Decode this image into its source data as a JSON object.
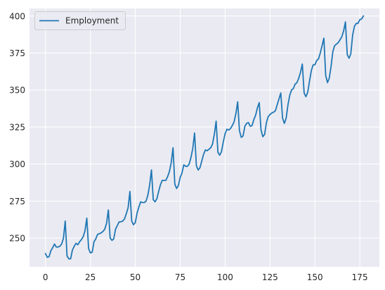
{
  "chart_data": {
    "type": "line",
    "title": "",
    "xlabel": "",
    "ylabel": "",
    "xlim": [
      -8.9,
      185.9
    ],
    "ylim": [
      230.6,
      405.1
    ],
    "xticks": [
      0,
      25,
      50,
      75,
      100,
      125,
      150,
      175
    ],
    "yticks": [
      250,
      275,
      300,
      325,
      350,
      375,
      400
    ],
    "grid": true,
    "legend_position": "top-left",
    "series": [
      {
        "name": "Employment",
        "color": "#1f77b4",
        "x": [
          0,
          1,
          2,
          3,
          4,
          5,
          6,
          7,
          8,
          9,
          10,
          11,
          12,
          13,
          14,
          15,
          16,
          17,
          18,
          19,
          20,
          21,
          22,
          23,
          24,
          25,
          26,
          27,
          28,
          29,
          30,
          31,
          32,
          33,
          34,
          35,
          36,
          37,
          38,
          39,
          40,
          41,
          42,
          43,
          44,
          45,
          46,
          47,
          48,
          49,
          50,
          51,
          52,
          53,
          54,
          55,
          56,
          57,
          58,
          59,
          60,
          61,
          62,
          63,
          64,
          65,
          66,
          67,
          68,
          69,
          70,
          71,
          72,
          73,
          74,
          75,
          76,
          77,
          78,
          79,
          80,
          81,
          82,
          83,
          84,
          85,
          86,
          87,
          88,
          89,
          90,
          91,
          92,
          93,
          94,
          95,
          96,
          97,
          98,
          99,
          100,
          101,
          102,
          103,
          104,
          105,
          106,
          107,
          108,
          109,
          110,
          111,
          112,
          113,
          114,
          115,
          116,
          117,
          118,
          119,
          120,
          121,
          122,
          123,
          124,
          125,
          126,
          127,
          128,
          129,
          130,
          131,
          132,
          133,
          134,
          135,
          136,
          137,
          138,
          139,
          140,
          141,
          142,
          143,
          144,
          145,
          146,
          147,
          148,
          149,
          150,
          151,
          152,
          153,
          154,
          155,
          156,
          157,
          158,
          159,
          160,
          161,
          162,
          163,
          164,
          165,
          166,
          167,
          168,
          169,
          170,
          171,
          172,
          173,
          174,
          175,
          176,
          177
        ],
        "values": [
          239.5,
          237,
          237.5,
          241.5,
          243.5,
          246,
          244,
          244,
          244.5,
          246,
          250,
          261.5,
          238,
          236,
          236,
          242,
          244.5,
          246.5,
          245.5,
          247.5,
          249,
          251,
          255,
          263.5,
          243,
          240,
          240.5,
          247.5,
          249.5,
          252.5,
          253,
          253.5,
          254.5,
          256,
          260,
          269,
          250,
          248.5,
          249.5,
          256,
          258.5,
          261,
          261,
          261.5,
          263,
          266.5,
          270.5,
          281.5,
          261.5,
          259,
          260.5,
          267,
          271,
          274.5,
          274,
          274,
          275,
          279,
          286,
          296,
          276,
          274.5,
          276.5,
          281.5,
          286,
          289,
          289,
          289,
          291.5,
          295,
          301,
          311,
          286.5,
          283.5,
          285.5,
          291,
          294,
          299.5,
          298.5,
          298.5,
          300,
          304.5,
          310.5,
          321,
          299,
          296,
          297.5,
          302,
          306.5,
          309.5,
          309,
          310,
          311,
          313.5,
          320,
          329,
          308,
          306,
          308.5,
          315,
          320.5,
          323.5,
          323,
          324,
          326,
          328.5,
          334,
          342,
          322.5,
          318,
          319,
          325.5,
          327.5,
          328,
          325.5,
          326,
          330,
          333,
          338,
          341.5,
          323,
          318.5,
          320,
          328,
          332,
          333.5,
          334.5,
          335,
          336,
          340,
          344,
          348,
          331,
          327.5,
          331,
          340,
          346.5,
          350,
          351,
          354,
          355,
          358,
          362,
          367.5,
          348,
          345.5,
          348.5,
          356,
          363,
          367,
          367,
          370,
          371,
          375,
          380,
          385,
          360,
          355,
          358,
          366,
          376,
          380,
          381,
          382,
          384,
          386,
          390,
          396,
          374,
          371.5,
          374.5,
          387,
          393,
          395,
          395,
          397.5,
          398,
          400
        ]
      }
    ]
  }
}
